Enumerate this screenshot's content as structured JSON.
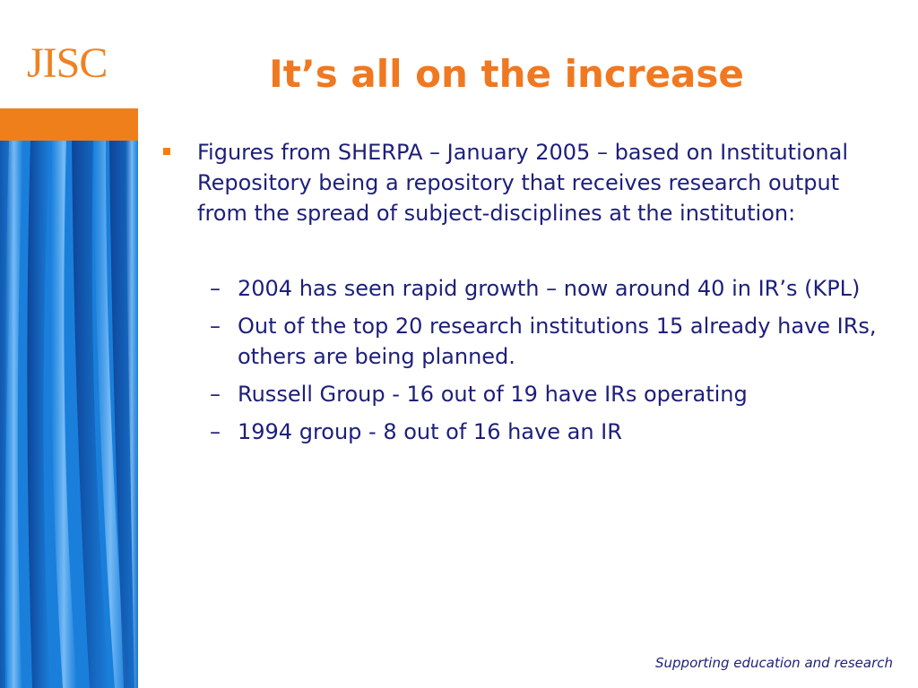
{
  "logo": {
    "text": "JISC"
  },
  "title": "It’s all on the increase",
  "main_bullet": "Figures from SHERPA – January 2005 – based on Institutional Repository being a repository that receives research output from the spread of subject-disciplines at the institution:",
  "sub_bullets": [
    {
      "dash": "–",
      "text": "2004 has seen rapid growth – now around 40 in IR’s (KPL)"
    },
    {
      "dash": "–",
      "text": "Out of the top 20 research institutions 15 already have IRs, others are being planned."
    },
    {
      "dash": "–",
      "text": "Russell Group - 16 out of 19 have IRs operating"
    },
    {
      "dash": "–",
      "text": "1994 group  - 8 out of 16 have an IR"
    }
  ],
  "footer": "Supporting education and research",
  "colors": {
    "accent_orange": "#ef7f1a",
    "text_navy": "#1d1f7a",
    "panel_blue": "#1976d2"
  }
}
